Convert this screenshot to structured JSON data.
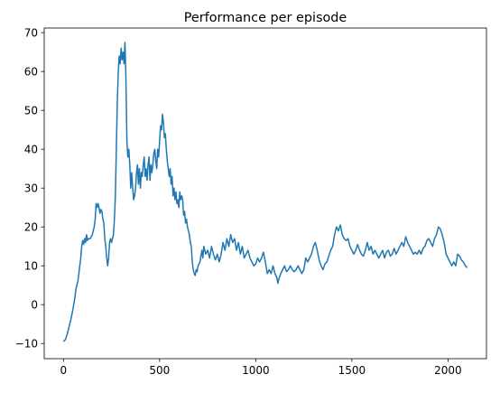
{
  "chart_data": {
    "type": "line",
    "title": "Performance per episode",
    "xlabel": "",
    "ylabel": "",
    "xlim": [
      -100,
      2200
    ],
    "ylim": [
      -13.9,
      71.2
    ],
    "x_ticks": [
      0,
      500,
      1000,
      1500,
      2000
    ],
    "y_ticks": [
      -10,
      0,
      10,
      20,
      30,
      40,
      50,
      60,
      70
    ],
    "grid": false,
    "legend": "none",
    "series": [
      {
        "color": "#1f77b4",
        "points": [
          [
            0,
            -9.5
          ],
          [
            10,
            -9
          ],
          [
            20,
            -7.5
          ],
          [
            30,
            -5.5
          ],
          [
            40,
            -3.5
          ],
          [
            50,
            -1
          ],
          [
            55,
            0.5
          ],
          [
            60,
            2
          ],
          [
            65,
            4
          ],
          [
            70,
            5
          ],
          [
            75,
            6
          ],
          [
            80,
            8
          ],
          [
            85,
            10
          ],
          [
            90,
            12
          ],
          [
            95,
            15
          ],
          [
            100,
            16.5
          ],
          [
            105,
            15.5
          ],
          [
            110,
            17
          ],
          [
            115,
            16
          ],
          [
            120,
            18
          ],
          [
            125,
            16.5
          ],
          [
            130,
            17
          ],
          [
            140,
            17
          ],
          [
            150,
            18
          ],
          [
            160,
            20
          ],
          [
            165,
            22
          ],
          [
            170,
            26
          ],
          [
            175,
            25
          ],
          [
            180,
            26
          ],
          [
            185,
            25
          ],
          [
            190,
            23.5
          ],
          [
            195,
            24.5
          ],
          [
            200,
            24
          ],
          [
            205,
            22
          ],
          [
            210,
            21
          ],
          [
            215,
            17
          ],
          [
            220,
            15
          ],
          [
            225,
            12
          ],
          [
            230,
            10
          ],
          [
            235,
            12
          ],
          [
            240,
            16
          ],
          [
            245,
            17
          ],
          [
            250,
            16
          ],
          [
            255,
            17
          ],
          [
            260,
            18
          ],
          [
            265,
            22
          ],
          [
            270,
            28
          ],
          [
            275,
            40
          ],
          [
            280,
            52
          ],
          [
            285,
            60
          ],
          [
            290,
            64
          ],
          [
            295,
            62
          ],
          [
            300,
            66
          ],
          [
            305,
            63
          ],
          [
            310,
            65
          ],
          [
            315,
            62
          ],
          [
            320,
            67.5
          ],
          [
            325,
            58
          ],
          [
            330,
            42
          ],
          [
            335,
            38
          ],
          [
            340,
            40
          ],
          [
            345,
            36
          ],
          [
            350,
            30
          ],
          [
            355,
            34
          ],
          [
            360,
            30
          ],
          [
            365,
            27
          ],
          [
            370,
            28
          ],
          [
            375,
            30
          ],
          [
            380,
            34
          ],
          [
            385,
            36
          ],
          [
            390,
            31
          ],
          [
            395,
            35
          ],
          [
            400,
            30
          ],
          [
            405,
            34
          ],
          [
            410,
            33
          ],
          [
            415,
            36
          ],
          [
            420,
            38
          ],
          [
            425,
            33
          ],
          [
            430,
            35
          ],
          [
            435,
            32
          ],
          [
            440,
            36
          ],
          [
            445,
            38
          ],
          [
            450,
            32
          ],
          [
            455,
            36
          ],
          [
            460,
            34
          ],
          [
            465,
            36
          ],
          [
            470,
            39
          ],
          [
            475,
            40
          ],
          [
            480,
            37
          ],
          [
            485,
            35
          ],
          [
            490,
            40
          ],
          [
            495,
            38
          ],
          [
            500,
            42
          ],
          [
            505,
            46
          ],
          [
            510,
            45
          ],
          [
            515,
            49
          ],
          [
            520,
            47
          ],
          [
            525,
            43
          ],
          [
            530,
            44
          ],
          [
            535,
            40
          ],
          [
            540,
            37
          ],
          [
            545,
            35
          ],
          [
            550,
            33
          ],
          [
            555,
            35
          ],
          [
            560,
            31
          ],
          [
            565,
            33
          ],
          [
            570,
            28
          ],
          [
            575,
            30
          ],
          [
            580,
            27
          ],
          [
            585,
            29
          ],
          [
            590,
            26
          ],
          [
            595,
            27
          ],
          [
            600,
            25
          ],
          [
            605,
            29
          ],
          [
            610,
            27
          ],
          [
            615,
            28
          ],
          [
            620,
            27
          ],
          [
            625,
            23
          ],
          [
            630,
            24
          ],
          [
            635,
            21
          ],
          [
            640,
            22
          ],
          [
            645,
            20
          ],
          [
            650,
            19
          ],
          [
            655,
            18
          ],
          [
            660,
            16
          ],
          [
            665,
            15
          ],
          [
            670,
            11
          ],
          [
            675,
            9
          ],
          [
            680,
            8
          ],
          [
            685,
            7.5
          ],
          [
            690,
            9
          ],
          [
            695,
            8.5
          ],
          [
            700,
            10
          ],
          [
            710,
            11
          ],
          [
            720,
            14
          ],
          [
            725,
            12
          ],
          [
            730,
            15
          ],
          [
            740,
            13
          ],
          [
            750,
            14
          ],
          [
            760,
            12
          ],
          [
            770,
            15
          ],
          [
            780,
            13
          ],
          [
            790,
            11.5
          ],
          [
            800,
            13
          ],
          [
            810,
            11
          ],
          [
            820,
            13
          ],
          [
            830,
            16
          ],
          [
            840,
            14
          ],
          [
            850,
            17
          ],
          [
            860,
            15
          ],
          [
            870,
            18
          ],
          [
            880,
            16
          ],
          [
            890,
            17
          ],
          [
            900,
            14
          ],
          [
            910,
            16
          ],
          [
            920,
            13
          ],
          [
            930,
            15
          ],
          [
            940,
            12
          ],
          [
            950,
            13
          ],
          [
            960,
            14
          ],
          [
            970,
            12
          ],
          [
            980,
            11
          ],
          [
            990,
            10
          ],
          [
            1000,
            10.5
          ],
          [
            1010,
            12
          ],
          [
            1020,
            11
          ],
          [
            1030,
            12
          ],
          [
            1040,
            13.5
          ],
          [
            1050,
            11
          ],
          [
            1060,
            8
          ],
          [
            1070,
            9
          ],
          [
            1080,
            8
          ],
          [
            1090,
            10
          ],
          [
            1100,
            8
          ],
          [
            1110,
            7
          ],
          [
            1115,
            5.5
          ],
          [
            1120,
            6.5
          ],
          [
            1130,
            8
          ],
          [
            1140,
            9
          ],
          [
            1150,
            10
          ],
          [
            1160,
            8.5
          ],
          [
            1170,
            9
          ],
          [
            1180,
            10
          ],
          [
            1190,
            9
          ],
          [
            1200,
            8.5
          ],
          [
            1210,
            9
          ],
          [
            1220,
            10
          ],
          [
            1230,
            9
          ],
          [
            1240,
            8
          ],
          [
            1250,
            9
          ],
          [
            1260,
            12
          ],
          [
            1270,
            11
          ],
          [
            1280,
            12
          ],
          [
            1290,
            13
          ],
          [
            1300,
            15
          ],
          [
            1310,
            16
          ],
          [
            1320,
            14
          ],
          [
            1330,
            11.5
          ],
          [
            1340,
            10
          ],
          [
            1350,
            9
          ],
          [
            1360,
            10.5
          ],
          [
            1370,
            11
          ],
          [
            1380,
            12.5
          ],
          [
            1390,
            14
          ],
          [
            1400,
            15
          ],
          [
            1410,
            18
          ],
          [
            1420,
            20
          ],
          [
            1430,
            19
          ],
          [
            1440,
            20.5
          ],
          [
            1450,
            18
          ],
          [
            1460,
            17
          ],
          [
            1470,
            16.5
          ],
          [
            1480,
            17
          ],
          [
            1490,
            15
          ],
          [
            1500,
            14
          ],
          [
            1510,
            13
          ],
          [
            1520,
            14
          ],
          [
            1530,
            15.5
          ],
          [
            1540,
            14
          ],
          [
            1550,
            13
          ],
          [
            1560,
            12.5
          ],
          [
            1570,
            14
          ],
          [
            1580,
            16
          ],
          [
            1590,
            14
          ],
          [
            1600,
            15
          ],
          [
            1610,
            13
          ],
          [
            1620,
            14
          ],
          [
            1630,
            13
          ],
          [
            1640,
            12
          ],
          [
            1650,
            13
          ],
          [
            1660,
            14
          ],
          [
            1670,
            12
          ],
          [
            1680,
            13.5
          ],
          [
            1690,
            14
          ],
          [
            1700,
            12.5
          ],
          [
            1710,
            13
          ],
          [
            1720,
            14.5
          ],
          [
            1730,
            13
          ],
          [
            1740,
            14
          ],
          [
            1750,
            15
          ],
          [
            1760,
            16
          ],
          [
            1770,
            15
          ],
          [
            1780,
            17.5
          ],
          [
            1790,
            16
          ],
          [
            1800,
            15
          ],
          [
            1810,
            14
          ],
          [
            1820,
            13
          ],
          [
            1830,
            13.5
          ],
          [
            1840,
            13
          ],
          [
            1850,
            14
          ],
          [
            1860,
            13
          ],
          [
            1870,
            14.5
          ],
          [
            1880,
            15
          ],
          [
            1890,
            16.5
          ],
          [
            1900,
            17
          ],
          [
            1910,
            16
          ],
          [
            1920,
            15
          ],
          [
            1930,
            17
          ],
          [
            1940,
            18
          ],
          [
            1950,
            20
          ],
          [
            1960,
            19.5
          ],
          [
            1970,
            18
          ],
          [
            1980,
            16
          ],
          [
            1990,
            13
          ],
          [
            2000,
            12
          ],
          [
            2010,
            11
          ],
          [
            2020,
            10
          ],
          [
            2030,
            11
          ],
          [
            2040,
            10
          ],
          [
            2050,
            13
          ],
          [
            2060,
            12.5
          ],
          [
            2070,
            11.5
          ],
          [
            2080,
            11
          ],
          [
            2090,
            10
          ],
          [
            2100,
            9.5
          ]
        ]
      }
    ]
  }
}
